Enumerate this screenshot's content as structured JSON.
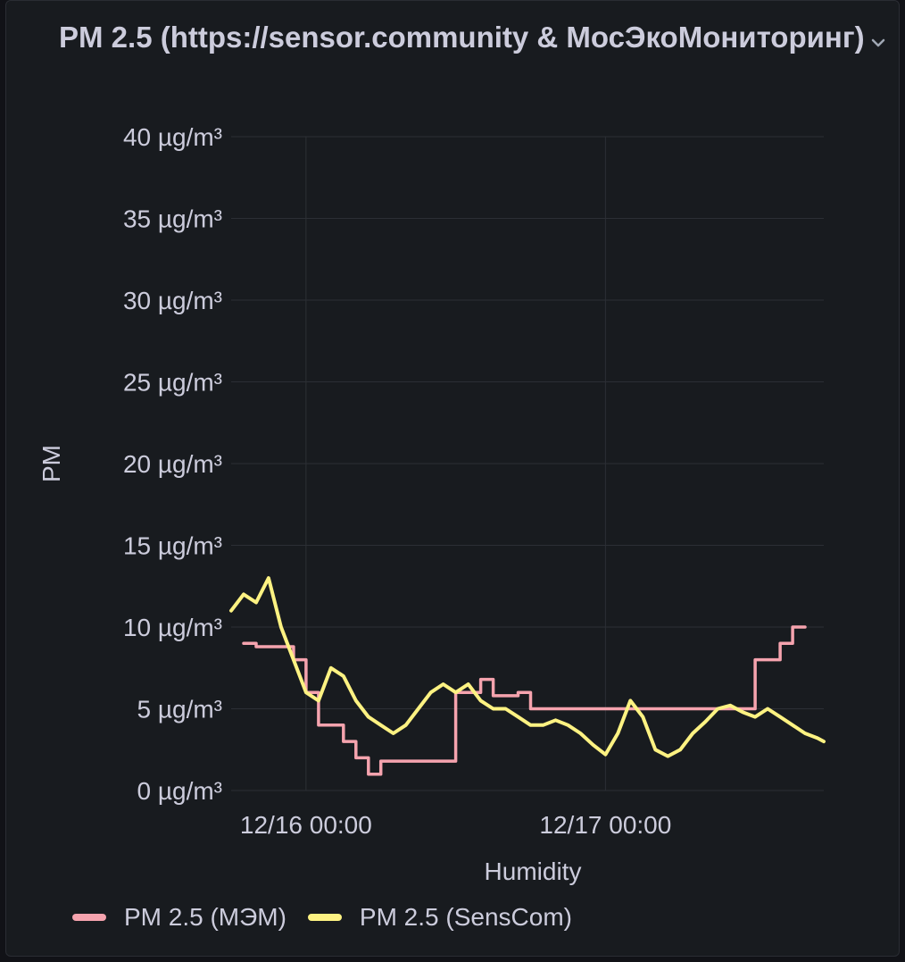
{
  "panel": {
    "title": "PM 2.5 (https://sensor.community & МосЭкоМониторинг)",
    "menu_icon": "chevron-down-icon"
  },
  "colors": {
    "background": "#111217",
    "panel_bg": "#181b1f",
    "grid": "#2c2f35",
    "text": "#ccccdc",
    "series_mem": "#f5a3ae",
    "series_senscom": "#fdf282"
  },
  "chart_data": {
    "type": "line",
    "ylabel": "PM",
    "xlabel": "Humidity",
    "y_unit": "µg/m³",
    "ylim": [
      0,
      40
    ],
    "yticks": [
      0,
      5,
      10,
      15,
      20,
      25,
      30,
      35,
      40
    ],
    "ytick_labels": [
      "0 µg/m³",
      "5 µg/m³",
      "10 µg/m³",
      "15 µg/m³",
      "20 µg/m³",
      "25 µg/m³",
      "30 µg/m³",
      "35 µg/m³",
      "40 µg/m³"
    ],
    "xlim": [
      "12/15 18:00",
      "12/17 17:30"
    ],
    "xticks": [
      "12/16 00:00",
      "12/17 00:00"
    ],
    "grid": true,
    "legend_position": "bottom-left",
    "series": [
      {
        "name": "PM 2.5 (МЭМ)",
        "color": "#f5a3ae",
        "step": true,
        "x": [
          "12/15 19:00",
          "12/15 20:00",
          "12/15 23:00",
          "12/16 00:00",
          "12/16 01:00",
          "12/16 03:00",
          "12/16 04:00",
          "12/16 05:00",
          "12/16 06:00",
          "12/16 07:00",
          "12/16 08:00",
          "12/16 09:00",
          "12/16 10:00",
          "12/16 11:00",
          "12/16 12:00",
          "12/16 13:00",
          "12/16 14:00",
          "12/16 15:00",
          "12/16 17:00",
          "12/16 18:00",
          "12/16 19:00",
          "12/16 20:00",
          "12/16 21:00",
          "12/16 22:00",
          "12/16 23:00",
          "12/17 00:00",
          "12/17 02:00",
          "12/17 04:00",
          "12/17 06:00",
          "12/17 08:00",
          "12/17 10:00",
          "12/17 12:00",
          "12/17 13:00",
          "12/17 14:00",
          "12/17 15:00",
          "12/17 16:00"
        ],
        "values": [
          9,
          8.8,
          8,
          6,
          4,
          3,
          2,
          1,
          1.8,
          1.8,
          1.8,
          1.8,
          1.8,
          1.8,
          6,
          6,
          6.8,
          5.8,
          6,
          5,
          5,
          5,
          5,
          5,
          5,
          5,
          5,
          5,
          5,
          5,
          5,
          8,
          8,
          9,
          10,
          10
        ]
      },
      {
        "name": "PM 2.5 (SensCom)",
        "color": "#fdf282",
        "step": false,
        "x": [
          "12/15 18:00",
          "12/15 19:00",
          "12/15 20:00",
          "12/15 21:00",
          "12/15 22:00",
          "12/15 23:00",
          "12/16 00:00",
          "12/16 01:00",
          "12/16 02:00",
          "12/16 03:00",
          "12/16 04:00",
          "12/16 05:00",
          "12/16 06:00",
          "12/16 07:00",
          "12/16 08:00",
          "12/16 09:00",
          "12/16 10:00",
          "12/16 11:00",
          "12/16 12:00",
          "12/16 13:00",
          "12/16 14:00",
          "12/16 15:00",
          "12/16 16:00",
          "12/16 17:00",
          "12/16 18:00",
          "12/16 19:00",
          "12/16 20:00",
          "12/16 21:00",
          "12/16 22:00",
          "12/16 23:00",
          "12/17 00:00",
          "12/17 01:00",
          "12/17 02:00",
          "12/17 03:00",
          "12/17 04:00",
          "12/17 05:00",
          "12/17 06:00",
          "12/17 07:00",
          "12/17 08:00",
          "12/17 09:00",
          "12/17 10:00",
          "12/17 11:00",
          "12/17 12:00",
          "12/17 13:00",
          "12/17 14:00",
          "12/17 15:00",
          "12/17 16:00",
          "12/17 17:00",
          "12/17 17:30"
        ],
        "values": [
          11,
          12,
          11.5,
          13,
          10,
          8,
          6,
          5.5,
          7.5,
          7,
          5.5,
          4.5,
          4,
          3.5,
          4,
          5,
          6,
          6.5,
          6,
          6.5,
          5.5,
          5,
          5,
          4.5,
          4,
          4,
          4.3,
          4,
          3.5,
          2.8,
          2.2,
          3.5,
          5.5,
          4.5,
          2.5,
          2.1,
          2.5,
          3.5,
          4.2,
          5,
          5.2,
          4.8,
          4.5,
          5,
          4.5,
          4,
          3.5,
          3.2,
          3
        ]
      }
    ]
  }
}
